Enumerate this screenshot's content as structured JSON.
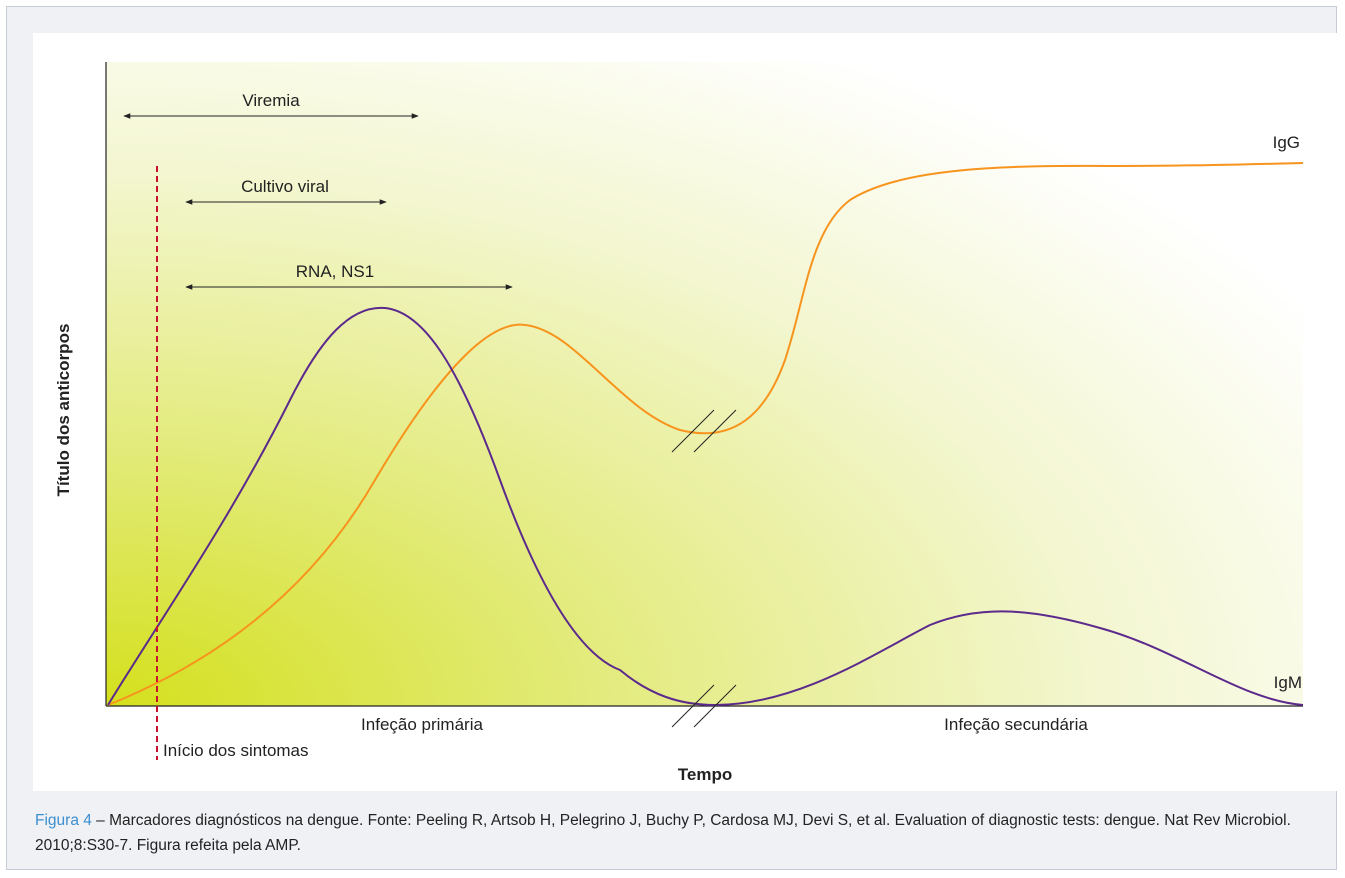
{
  "caption": {
    "figure_label": "Figura 4",
    "text": " – Marcadores diagnósticos na dengue. Fonte: Peeling R, Artsob H, Pelegrino J, Buchy P, Cardosa MJ, Devi S, et al. Evaluation of diagnostic tests: dengue. Nat Rev Microbiol. 2010;8:S30-7. Figura refeita pela AMP."
  },
  "colors": {
    "igg": "#f7941d",
    "igm": "#5b2a8c",
    "symptom_line": "#c8102e",
    "gradient_start": "#d4e01c",
    "gradient_end": "#ffffff"
  },
  "chart_data": {
    "type": "line",
    "title": "",
    "xlabel": "Tempo",
    "ylabel": "Título dos anticorpos",
    "grid": false,
    "phases": [
      "Infeção primária",
      "Infeção secundária"
    ],
    "series": [
      {
        "name": "IgG",
        "color": "#f7941d"
      },
      {
        "name": "IgM",
        "color": "#5b2a8c"
      }
    ],
    "marker": {
      "label": "Início dos sintomas"
    },
    "spans": [
      {
        "label": "Viremia"
      },
      {
        "label": "Cultivo viral"
      },
      {
        "label": "RNA, NS1"
      }
    ]
  }
}
